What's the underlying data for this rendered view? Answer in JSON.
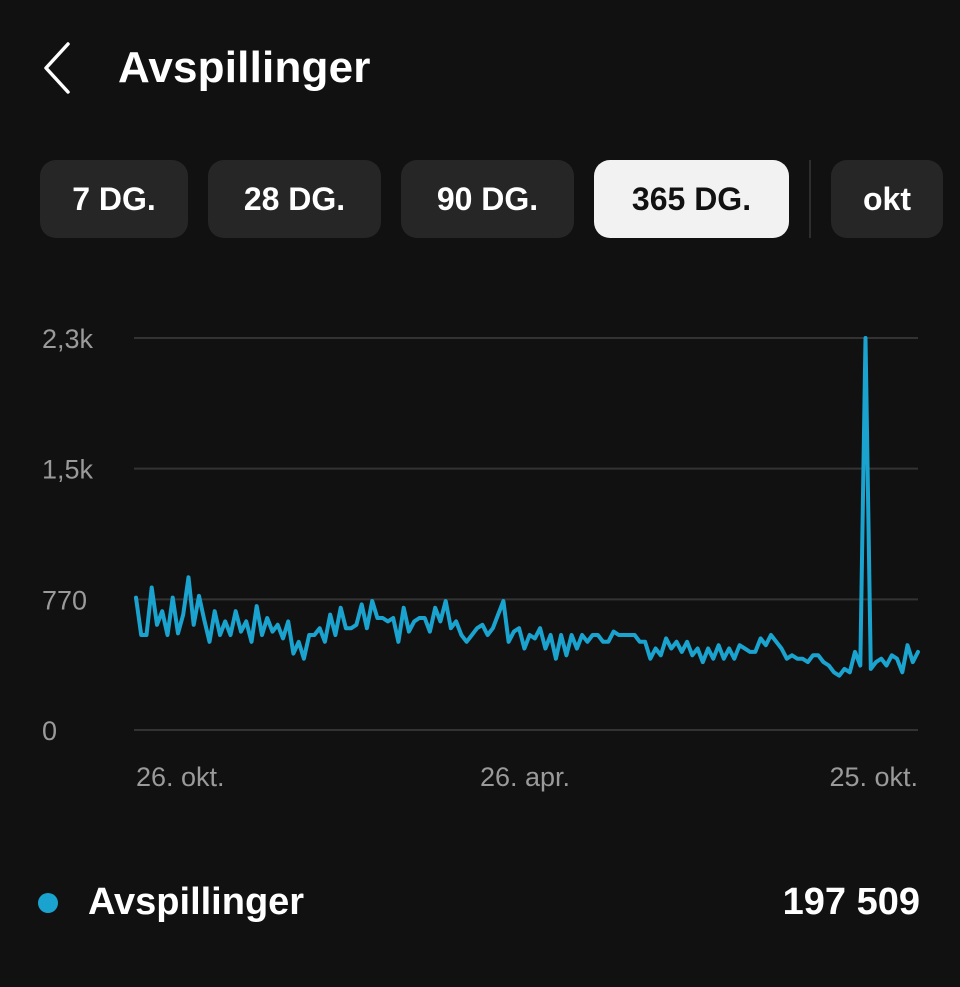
{
  "header": {
    "title": "Avspillinger"
  },
  "tabs": [
    {
      "label": "7 DG.",
      "active": false
    },
    {
      "label": "28 DG.",
      "active": false
    },
    {
      "label": "90 DG.",
      "active": false
    },
    {
      "label": "365 DG.",
      "active": true
    },
    {
      "label": "okt",
      "active": false
    }
  ],
  "colors": {
    "accent": "#1ba3cf",
    "background": "#111111",
    "chip": "#262626",
    "chip_active": "#f2f2f2"
  },
  "chart_data": {
    "type": "line",
    "y_tick_labels": [
      "0",
      "770",
      "1,5k",
      "2,3k"
    ],
    "y_tick_values": [
      0,
      770,
      1540,
      2310
    ],
    "x_tick_labels": [
      "26. okt.",
      "26. apr.",
      "25. okt."
    ],
    "ylim": [
      0,
      2310
    ],
    "grid": true,
    "series": [
      {
        "name": "Avspillinger",
        "color": "#1ba3cf",
        "values": [
          780,
          560,
          560,
          840,
          620,
          700,
          560,
          780,
          570,
          680,
          900,
          620,
          790,
          650,
          520,
          700,
          560,
          640,
          560,
          700,
          580,
          640,
          520,
          730,
          560,
          660,
          580,
          620,
          540,
          640,
          450,
          520,
          420,
          560,
          560,
          600,
          520,
          680,
          560,
          720,
          600,
          600,
          620,
          740,
          600,
          760,
          660,
          660,
          640,
          660,
          520,
          720,
          580,
          640,
          660,
          660,
          580,
          720,
          640,
          760,
          600,
          640,
          560,
          520,
          560,
          600,
          620,
          560,
          600,
          680,
          760,
          520,
          580,
          600,
          480,
          560,
          540,
          600,
          480,
          560,
          420,
          560,
          440,
          560,
          480,
          560,
          520,
          560,
          560,
          520,
          520,
          580,
          560,
          560,
          560,
          560,
          520,
          520,
          420,
          480,
          440,
          540,
          480,
          520,
          460,
          520,
          440,
          480,
          400,
          480,
          420,
          500,
          420,
          480,
          420,
          500,
          480,
          460,
          460,
          540,
          500,
          560,
          520,
          480,
          420,
          440,
          420,
          420,
          400,
          440,
          440,
          400,
          380,
          340,
          320,
          360,
          340,
          460,
          380,
          2310,
          360,
          400,
          420,
          380,
          440,
          420,
          340,
          500,
          400,
          460
        ]
      }
    ],
    "legend": {
      "position": "bottom",
      "label": "Avspillinger",
      "total": "197 509"
    }
  },
  "legend": {
    "label": "Avspillinger",
    "total": "197 509"
  }
}
